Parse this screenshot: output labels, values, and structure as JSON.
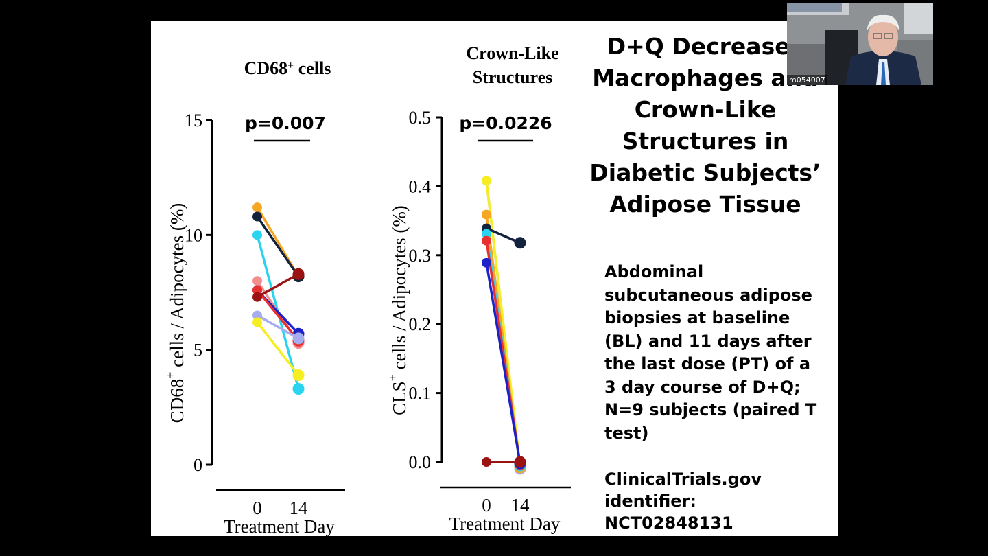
{
  "slide": {
    "title_lines": [
      "D+Q Decreases",
      "Macrophages and",
      "Crown-Like",
      "Structures in",
      "Diabetic Subjects’",
      "Adipose Tissue"
    ],
    "description_lines": [
      "Abdominal",
      "subcutaneous adipose",
      "biopsies at baseline",
      "(BL) and 11 days after",
      "the last dose (PT) of a",
      "3 day course of D+Q;",
      "N=9 subjects (paired T",
      "test)"
    ],
    "clinicaltrials_lines": [
      "ClinicalTrials.gov",
      "identifier:",
      "NCT02848131"
    ]
  },
  "webcam": {
    "name_tag": "m054007"
  },
  "chart_data": [
    {
      "type": "line",
      "title": "CD68⁺ cells",
      "annotation": "p=0.007",
      "ylabel": "CD68⁺ cells / Adipocytes (%)",
      "xlabel": "Treatment Day",
      "x": [
        "0",
        "14"
      ],
      "ylim": [
        0,
        15
      ],
      "yticks": [
        "0",
        "5",
        "10",
        "15"
      ],
      "series": [
        {
          "name": "S1",
          "color": "#f5a623",
          "values": [
            11.2,
            8.2
          ]
        },
        {
          "name": "S2",
          "color": "#13233d",
          "values": [
            10.8,
            8.2
          ]
        },
        {
          "name": "S3",
          "color": "#2bd4ee",
          "values": [
            10.0,
            3.3
          ]
        },
        {
          "name": "S4",
          "color": "#f28e8e",
          "values": [
            8.0,
            5.3
          ]
        },
        {
          "name": "S5",
          "color": "#1a22c8",
          "values": [
            7.6,
            5.7
          ]
        },
        {
          "name": "S6",
          "color": "#e83030",
          "values": [
            7.6,
            5.4
          ]
        },
        {
          "name": "S7",
          "color": "#9a1212",
          "values": [
            7.3,
            8.3
          ]
        },
        {
          "name": "S8",
          "color": "#a6adee",
          "values": [
            6.5,
            5.5
          ]
        },
        {
          "name": "S9",
          "color": "#f4ee22",
          "values": [
            6.2,
            3.9
          ]
        }
      ]
    },
    {
      "type": "line",
      "title": "Crown-Like Structures",
      "annotation": "p=0.0226",
      "ylabel": "CLS⁺ cells / Adipocytes (%)",
      "xlabel": "Treatment Day",
      "x": [
        "0",
        "14"
      ],
      "ylim": [
        0,
        0.5
      ],
      "yticks": [
        "0.0",
        "0.1",
        "0.2",
        "0.3",
        "0.4",
        "0.5"
      ],
      "series": [
        {
          "name": "S1",
          "color": "#a6adee",
          "values": [
            0.408,
            -0.01
          ]
        },
        {
          "name": "S2",
          "color": "#f4ee22",
          "values": [
            0.408,
            -0.005
          ]
        },
        {
          "name": "S3",
          "color": "#f5a623",
          "values": [
            0.359,
            -0.008
          ]
        },
        {
          "name": "S4",
          "color": "#13233d",
          "values": [
            0.339,
            0.318
          ]
        },
        {
          "name": "S5",
          "color": "#2bd4ee",
          "values": [
            0.331,
            -0.005
          ]
        },
        {
          "name": "S6",
          "color": "#e83030",
          "values": [
            0.321,
            -0.003
          ]
        },
        {
          "name": "S7",
          "color": "#1a22c8",
          "values": [
            0.289,
            -0.002
          ]
        },
        {
          "name": "S8",
          "color": "#9a1212",
          "values": [
            0.0,
            0.0
          ]
        }
      ]
    }
  ]
}
